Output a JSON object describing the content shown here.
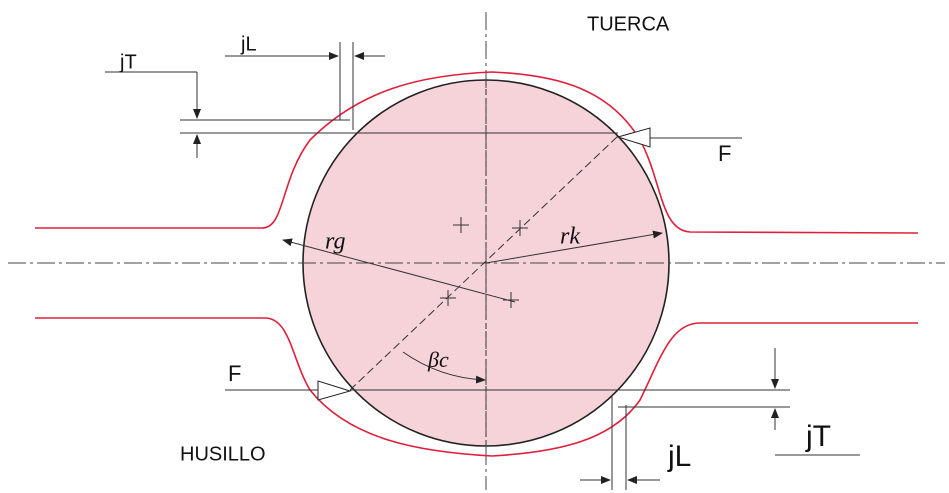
{
  "labels": {
    "nut": "TUERCA",
    "screw": "HUSILLO",
    "top_jL": "jL",
    "top_jT": "jT",
    "right_F": "F",
    "left_F": "F",
    "rg": "rg",
    "rk": "rk",
    "beta": "βc",
    "bottom_jL": "jL",
    "bottom_jT": "jT"
  }
}
